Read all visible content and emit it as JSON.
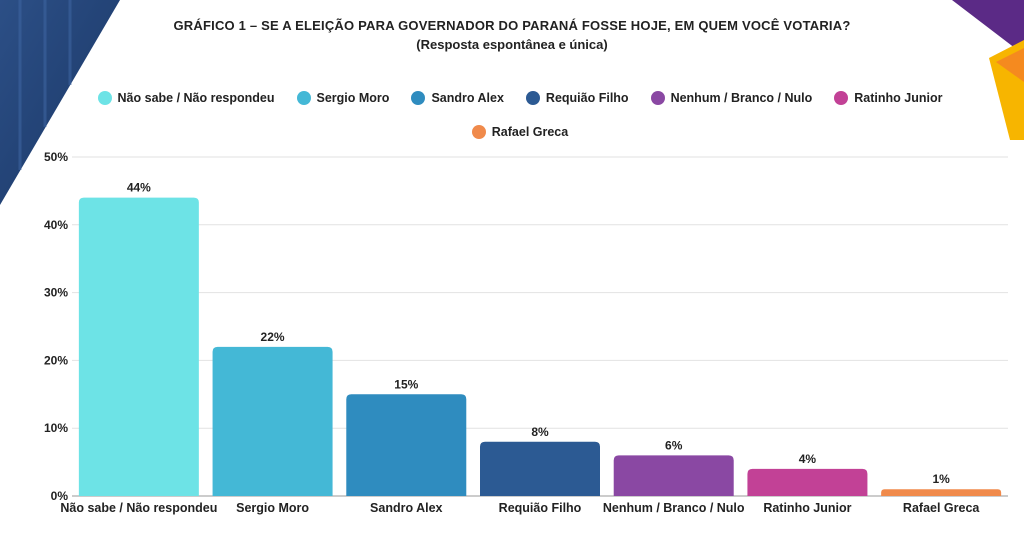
{
  "title": "GRÁFICO 1 – SE A ELEIÇÃO PARA GOVERNADOR DO PARANÁ FOSSE HOJE, EM QUEM VOCÊ VOTARIA?",
  "subtitle": "(Resposta espontânea e única)",
  "legend": [
    {
      "label": "Não sabe / Não respondeu",
      "color": "#6de3e6"
    },
    {
      "label": "Sergio Moro",
      "color": "#44b8d6"
    },
    {
      "label": "Sandro Alex",
      "color": "#2f8cbf"
    },
    {
      "label": "Requião Filho",
      "color": "#2c5a93"
    },
    {
      "label": "Nenhum / Branco / Nulo",
      "color": "#8a48a3"
    },
    {
      "label": "Ratinho Junior",
      "color": "#c24196"
    },
    {
      "label": "Rafael Greca",
      "color": "#f08a4b"
    }
  ],
  "chart_data": {
    "type": "bar",
    "categories": [
      "Não sabe / Não respondeu",
      "Sergio Moro",
      "Sandro Alex",
      "Requião Filho",
      "Nenhum / Branco / Nulo",
      "Ratinho Junior",
      "Rafael Greca"
    ],
    "values": [
      44,
      22,
      15,
      8,
      6,
      4,
      1
    ],
    "value_labels": [
      "44%",
      "22%",
      "15%",
      "8%",
      "6%",
      "4%",
      "1%"
    ],
    "colors": [
      "#6de3e6",
      "#44b8d6",
      "#2f8cbf",
      "#2c5a93",
      "#8a48a3",
      "#c24196",
      "#f08a4b"
    ],
    "title": "GRÁFICO 1 – SE A ELEIÇÃO PARA GOVERNADOR DO PARANÁ FOSSE HOJE, EM QUEM VOCÊ VOTARIA?",
    "subtitle": "(Resposta espontânea e única)",
    "xlabel": "",
    "ylabel": "",
    "ylim": [
      0,
      50
    ],
    "yticks": [
      0,
      10,
      20,
      30,
      40,
      50
    ],
    "ytick_labels": [
      "0%",
      "10%",
      "20%",
      "30%",
      "40%",
      "50%"
    ],
    "grid": true,
    "legend_position": "top"
  }
}
